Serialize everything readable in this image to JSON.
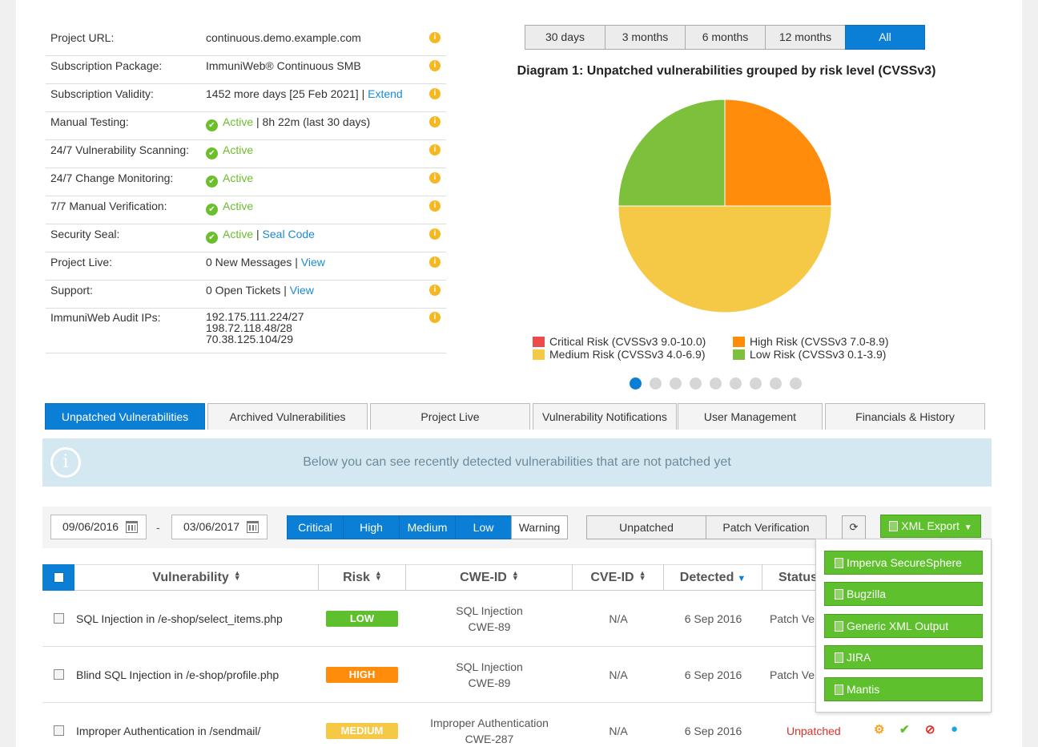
{
  "info": [
    {
      "label": "Project URL:",
      "value": "continuous.demo.example.com"
    },
    {
      "label": "Subscription Package:",
      "value": "ImmuniWeb® Continuous SMB"
    },
    {
      "label": "Subscription Validity:",
      "value": "1452 more days [25 Feb 2021] | ",
      "link": "Extend"
    },
    {
      "label": "Manual Testing:",
      "status": "Active",
      "value": " | 8h 22m (last 30 days)"
    },
    {
      "label": "24/7 Vulnerability Scanning:",
      "status": "Active"
    },
    {
      "label": "24/7 Change Monitoring:",
      "status": "Active"
    },
    {
      "label": "7/7 Manual Verification:",
      "status": "Active"
    },
    {
      "label": "Security Seal:",
      "status": "Active",
      "value": " | ",
      "link": "Seal Code"
    },
    {
      "label": "Project Live:",
      "value": "0 New Messages | ",
      "link": "View"
    },
    {
      "label": "Support:",
      "value": "0 Open Tickets | ",
      "link": "View"
    },
    {
      "label": "ImmuniWeb Audit IPs:",
      "ips": [
        "192.175.111.224/27",
        "198.72.118.48/28",
        "70.38.125.104/29"
      ]
    }
  ],
  "info_icon": "i",
  "periods": [
    "30 days",
    "3 months",
    "6 months",
    "12 months",
    "All"
  ],
  "chart_data": {
    "type": "pie",
    "title": "Diagram 1: Unpatched vulnerabilities grouped by risk level (CVSSv3)",
    "categories": [
      "Critical Risk (CVSSv3 9.0-10.0)",
      "High Risk (CVSSv3 7.0-8.9)",
      "Medium Risk (CVSSv3 4.0-6.9)",
      "Low Risk (CVSSv3 0.1-3.9)"
    ],
    "values": [
      0,
      1,
      2,
      1
    ],
    "colors": [
      "#ef4a4a",
      "#ff8c0a",
      "#f5c945",
      "#7cc03c"
    ],
    "legend": "bottom"
  },
  "carousel_count": 9,
  "tabs": [
    "Unpatched Vulnerabilities",
    "Archived Vulnerabilities",
    "Project Live",
    "Vulnerability Notifications",
    "User Management",
    "Financials & History"
  ],
  "banner": "Below you can see recently detected vulnerabilities that are not patched yet",
  "filters": {
    "date_from": "09/06/2016",
    "date_sep": "-",
    "date_to": "03/06/2017",
    "risks": [
      "Critical",
      "High",
      "Medium",
      "Low",
      "Warning"
    ],
    "status": [
      "Unpatched",
      "Patch Verification"
    ],
    "refresh_icon": "⟳",
    "export": "XML Export"
  },
  "export_options": [
    "Imperva SecureSphere",
    "Bugzilla",
    "Generic XML Output",
    "JIRA",
    "Mantis"
  ],
  "columns": [
    "Vulnerability",
    "Risk",
    "CWE-ID",
    "CVE-ID",
    "Detected",
    "Status"
  ],
  "rows": [
    {
      "name": "SQL Injection in /e-shop/select_items.php",
      "risk": "LOW",
      "risk_color": "#5ec02c",
      "cwe1": "SQL Injection",
      "cwe2": "CWE-89",
      "cve": "N/A",
      "detected": "6 Sep 2016",
      "status": "Patch Ve"
    },
    {
      "name": "Blind SQL Injection in /e-shop/profile.php",
      "risk": "HIGH",
      "risk_color": "#ff8c0a",
      "cwe1": "SQL Injection",
      "cwe2": "CWE-89",
      "cve": "N/A",
      "detected": "6 Sep 2016",
      "status": "Patch Ve"
    },
    {
      "name": "Improper Authentication in /sendmail/",
      "risk": "MEDIUM",
      "risk_color": "#f5c945",
      "cwe1": "Improper Authentication",
      "cwe2": "CWE-287",
      "cve": "N/A",
      "detected": "6 Sep 2016",
      "status": "Unpatched"
    }
  ]
}
